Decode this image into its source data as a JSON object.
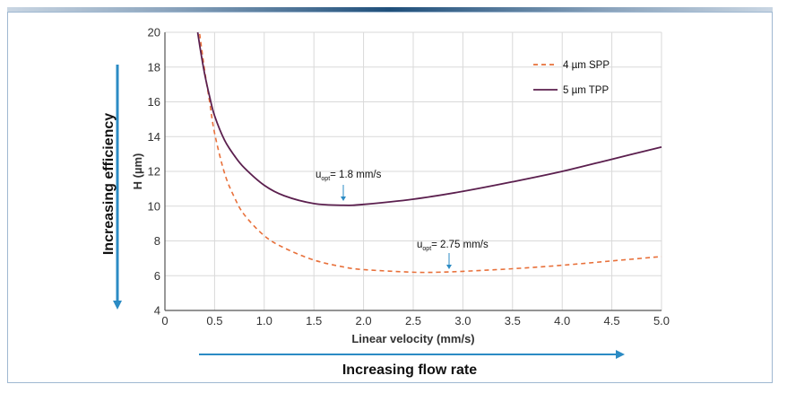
{
  "chart_data": {
    "type": "line",
    "xlabel": "Linear velocity (mm/s)",
    "ylabel": "H (µm)",
    "xlim": [
      0,
      5.0
    ],
    "ylim": [
      4,
      20
    ],
    "x_ticks": [
      "0",
      "0.5",
      "1.0",
      "1.5",
      "2.0",
      "2.5",
      "3.0",
      "3.5",
      "4.0",
      "4.5",
      "5.0"
    ],
    "y_ticks": [
      "4",
      "6",
      "8",
      "10",
      "12",
      "14",
      "16",
      "18",
      "20"
    ],
    "grid": true,
    "legend_position": "top-right",
    "series": [
      {
        "name": "4 µm SPP",
        "style": "dashed",
        "color": "#e8703a",
        "x": [
          0.35,
          0.4,
          0.45,
          0.5,
          0.6,
          0.7,
          0.8,
          1.0,
          1.2,
          1.5,
          1.8,
          2.0,
          2.5,
          2.75,
          3.0,
          3.5,
          4.0,
          4.5,
          5.0
        ],
        "y": [
          19.9,
          17.8,
          16.0,
          14.2,
          11.9,
          10.5,
          9.5,
          8.3,
          7.6,
          6.9,
          6.5,
          6.35,
          6.2,
          6.2,
          6.25,
          6.4,
          6.6,
          6.85,
          7.1
        ]
      },
      {
        "name": "5 µm TPP",
        "style": "solid",
        "color": "#5b1f4e",
        "x": [
          0.33,
          0.36,
          0.4,
          0.45,
          0.5,
          0.6,
          0.7,
          0.8,
          1.0,
          1.2,
          1.5,
          1.8,
          2.0,
          2.5,
          3.0,
          3.5,
          4.0,
          4.5,
          5.0
        ],
        "y": [
          20.0,
          18.9,
          17.6,
          16.3,
          15.2,
          13.8,
          12.9,
          12.2,
          11.2,
          10.6,
          10.15,
          10.05,
          10.1,
          10.4,
          10.85,
          11.4,
          12.0,
          12.7,
          13.4
        ]
      }
    ],
    "annotations": [
      {
        "label": "u",
        "sub": "opt",
        "text": "= 1.8 mm/s",
        "x": 1.8,
        "y": 10.05
      },
      {
        "label": "u",
        "sub": "opt",
        "text": "= 2.75 mm/s",
        "x": 2.75,
        "y": 6.2
      }
    ],
    "side_arrows": {
      "vertical": "Increasing efficiency",
      "horizontal": "Increasing flow rate"
    },
    "colors": {
      "arrow": "#2b8bc4",
      "grid": "#d9d9d9",
      "axis": "#555555"
    }
  }
}
